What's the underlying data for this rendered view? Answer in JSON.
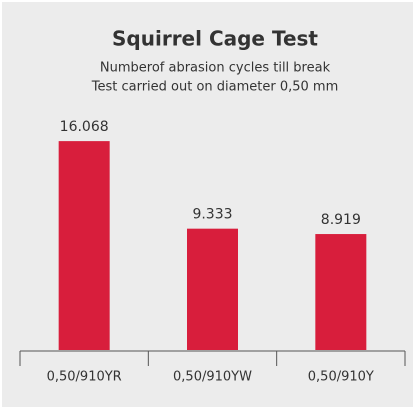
{
  "chart_data": {
    "type": "bar",
    "title": "Squirrel Cage Test",
    "subtitle": [
      "Numberof abrasion cycles till break",
      "Test carried out on diameter 0,50 mm"
    ],
    "categories": [
      "0,50/910YR",
      "0,50/910YW",
      "0,50/910Y"
    ],
    "values": [
      16068,
      9333,
      8919
    ],
    "value_labels": [
      "16.068",
      "9.333",
      "8.919"
    ],
    "color": "#d81e3c",
    "ylim": [
      0,
      18000
    ]
  }
}
